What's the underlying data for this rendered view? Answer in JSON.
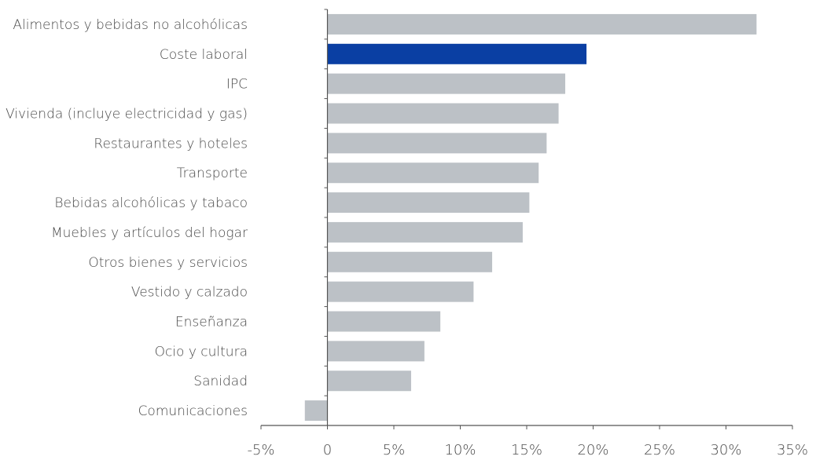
{
  "chart_data": {
    "type": "bar",
    "orientation": "horizontal",
    "categories": [
      "Alimentos y bebidas no alcohólicas",
      "Coste laboral",
      "IPC",
      "Vivienda (incluye electricidad y gas)",
      "Restaurantes y hoteles",
      "Transporte",
      "Bebidas alcohólicas y tabaco",
      "Muebles y artículos del hogar",
      "Otros bienes y servicios",
      "Vestido y calzado",
      "Enseñanza",
      "Ocio y cultura",
      "Sanidad",
      "Comunicaciones"
    ],
    "values": [
      32.3,
      19.5,
      17.9,
      17.4,
      16.5,
      15.9,
      15.2,
      14.7,
      12.4,
      11.0,
      8.5,
      7.3,
      6.3,
      -1.7
    ],
    "highlight_index": 1,
    "colors": {
      "default": "#bcc1c6",
      "highlight": "#0a3fa3",
      "axis": "#555555"
    },
    "xlim": [
      -5,
      35
    ],
    "xticks": [
      -5,
      0,
      5,
      10,
      15,
      20,
      25,
      30,
      35
    ],
    "xtick_labels": [
      "-5%",
      "0",
      "5%",
      "10%",
      "15%",
      "20%",
      "25%",
      "30%",
      "35%"
    ],
    "title": "",
    "xlabel": "",
    "ylabel": "",
    "grid": false,
    "legend": false
  }
}
